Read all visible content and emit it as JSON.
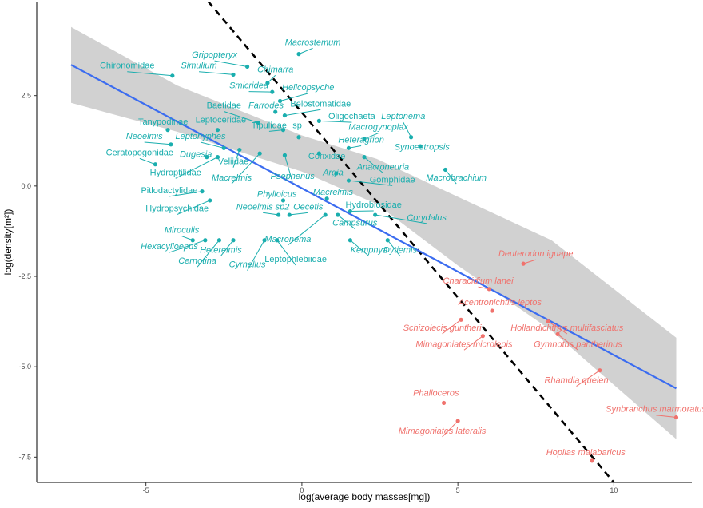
{
  "chart_data": {
    "type": "scatter",
    "title": "",
    "xlabel": "log(average body masses[mg])",
    "ylabel": "log(density[m²])",
    "xlim": [
      -8.5,
      12.5
    ],
    "ylim": [
      -8.2,
      5.1
    ],
    "x_ticks": [
      -5,
      0,
      5,
      10
    ],
    "x_tick_labels": [
      "-5",
      "0",
      "5",
      "10"
    ],
    "y_ticks": [
      2.5,
      0,
      -2.5,
      -5,
      -7.5
    ],
    "y_tick_labels": [
      "2.5",
      "0.0",
      "-2.5",
      "-5.0",
      "-7.5"
    ],
    "grid": false,
    "legend": "none",
    "colors": {
      "invertebrates": "#1aaeae",
      "fish": "#f0726d",
      "regression": "#3b6cf0",
      "confidence_band": "#cccccc",
      "reference_line": "#000000"
    },
    "regression_line": {
      "from": [
        -7.4,
        3.35
      ],
      "to": [
        12.0,
        -5.6
      ]
    },
    "confidence_band": {
      "x": [
        -7.4,
        -4,
        0,
        2.4,
        5,
        8,
        12.0
      ],
      "upper": [
        4.4,
        2.78,
        1.4,
        0.75,
        -0.3,
        -1.5,
        -4.2
      ],
      "lower": [
        2.3,
        1.5,
        0.4,
        -0.5,
        -2.2,
        -4.0,
        -7.0
      ]
    },
    "reference_line": {
      "from": [
        -3.0,
        5.1
      ],
      "to": [
        10.0,
        -8.2
      ]
    },
    "series": [
      {
        "points": [
          {
            "label": "Chironomidae",
            "italic": false,
            "x": -4.15,
            "y": 3.05,
            "tx": -5.6,
            "ty": 3.25,
            "anchor": "middle"
          },
          {
            "label": "Simulium",
            "italic": true,
            "x": -2.2,
            "y": 3.08,
            "tx": -3.3,
            "ty": 3.25,
            "anchor": "middle"
          },
          {
            "label": "Gripopteryx",
            "italic": true,
            "x": -1.75,
            "y": 3.3,
            "tx": -2.8,
            "ty": 3.55,
            "anchor": "middle"
          },
          {
            "label": "Macrostemum",
            "italic": true,
            "x": -0.1,
            "y": 3.65,
            "tx": 0.35,
            "ty": 3.9,
            "anchor": "middle"
          },
          {
            "label": "Chimarra",
            "italic": true,
            "x": -1.1,
            "y": 2.85,
            "tx": -0.85,
            "ty": 3.15,
            "anchor": "middle"
          },
          {
            "label": "Smicridea",
            "italic": true,
            "x": -0.95,
            "y": 2.6,
            "tx": -1.7,
            "ty": 2.7,
            "anchor": "middle"
          },
          {
            "label": "Helicopsyche",
            "italic": true,
            "x": -0.7,
            "y": 2.35,
            "tx": 0.2,
            "ty": 2.65,
            "anchor": "middle"
          },
          {
            "label": "Baetidae",
            "italic": false,
            "x": -1.4,
            "y": 1.75,
            "tx": -2.5,
            "ty": 2.15,
            "anchor": "middle"
          },
          {
            "label": "Farrodes",
            "italic": true,
            "x": -0.85,
            "y": 2.05,
            "tx": -1.15,
            "ty": 2.15,
            "anchor": "middle"
          },
          {
            "label": "Belostomatidae",
            "italic": false,
            "x": -0.55,
            "y": 1.95,
            "tx": 0.6,
            "ty": 2.2,
            "anchor": "middle"
          },
          {
            "label": "Oligochaeta",
            "italic": false,
            "x": 0.55,
            "y": 1.8,
            "tx": 1.6,
            "ty": 1.85,
            "anchor": "middle"
          },
          {
            "label": "Leptonema",
            "italic": true,
            "x": 3.5,
            "y": 1.35,
            "tx": 3.25,
            "ty": 1.85,
            "anchor": "middle"
          },
          {
            "label": "Tanypodinae",
            "italic": false,
            "x": -4.3,
            "y": 1.55,
            "tx": -4.45,
            "ty": 1.7,
            "anchor": "middle"
          },
          {
            "label": "Leptoceridae",
            "italic": false,
            "x": -2.7,
            "y": 1.55,
            "tx": -2.6,
            "ty": 1.75,
            "anchor": "middle"
          },
          {
            "label": "Tipulidae",
            "italic": false,
            "x": -0.6,
            "y": 1.55,
            "tx": -1.05,
            "ty": 1.6,
            "anchor": "middle"
          },
          {
            "label": "sp",
            "italic": false,
            "x": -0.1,
            "y": 1.35,
            "tx": -0.15,
            "ty": 1.6,
            "anchor": "middle"
          },
          {
            "label": "Macrogynoplax",
            "italic": true,
            "x": 2.0,
            "y": 1.3,
            "tx": 2.45,
            "ty": 1.55,
            "anchor": "middle"
          },
          {
            "label": "Neoelmis",
            "italic": true,
            "x": -4.2,
            "y": 1.15,
            "tx": -5.05,
            "ty": 1.3,
            "anchor": "middle"
          },
          {
            "label": "Leptohyphes",
            "italic": true,
            "x": -2.5,
            "y": 1.05,
            "tx": -3.25,
            "ty": 1.3,
            "anchor": "middle"
          },
          {
            "label": "Heteragrion",
            "italic": true,
            "x": 1.5,
            "y": 1.05,
            "tx": 1.9,
            "ty": 1.2,
            "anchor": "middle"
          },
          {
            "label": "Synoestropsis",
            "italic": true,
            "x": 3.8,
            "y": 1.1,
            "tx": 3.85,
            "ty": 1.0,
            "anchor": "middle"
          },
          {
            "label": "Ceratopogonidae",
            "italic": false,
            "x": -4.7,
            "y": 0.6,
            "tx": -5.2,
            "ty": 0.85,
            "anchor": "middle"
          },
          {
            "label": "Dugesia",
            "italic": true,
            "x": -3.05,
            "y": 0.8,
            "tx": -3.4,
            "ty": 0.8,
            "anchor": "middle"
          },
          {
            "label": "Veliidae",
            "italic": false,
            "x": -2.0,
            "y": 1.0,
            "tx": -2.2,
            "ty": 0.6,
            "anchor": "middle"
          },
          {
            "label": "Corixidae",
            "italic": false,
            "x": 0.55,
            "y": 0.9,
            "tx": 0.8,
            "ty": 0.75,
            "anchor": "middle"
          },
          {
            "label": "Hydroptilidae",
            "italic": false,
            "x": -2.7,
            "y": 0.8,
            "tx": -4.05,
            "ty": 0.3,
            "anchor": "middle"
          },
          {
            "label": "Macrelmis",
            "italic": true,
            "x": -1.35,
            "y": 0.9,
            "tx": -2.25,
            "ty": 0.15,
            "anchor": "middle"
          },
          {
            "label": "Psephenus",
            "italic": true,
            "x": -0.55,
            "y": 0.85,
            "tx": -0.3,
            "ty": 0.2,
            "anchor": "middle"
          },
          {
            "label": "Argia",
            "italic": true,
            "x": 1.1,
            "y": 0.35,
            "tx": 1.0,
            "ty": 0.3,
            "anchor": "middle"
          },
          {
            "label": "Anacroneuria",
            "italic": true,
            "x": 2.0,
            "y": 0.8,
            "tx": 2.6,
            "ty": 0.45,
            "anchor": "middle"
          },
          {
            "label": "Macrobrachium",
            "italic": true,
            "x": 4.6,
            "y": 0.45,
            "tx": 4.95,
            "ty": 0.15,
            "anchor": "middle"
          },
          {
            "label": "Gomphidae",
            "italic": false,
            "x": 1.5,
            "y": 0.15,
            "tx": 2.9,
            "ty": 0.1,
            "anchor": "middle"
          },
          {
            "label": "Pitlodactylidae",
            "italic": false,
            "x": -3.2,
            "y": -0.15,
            "tx": -4.25,
            "ty": -0.2,
            "anchor": "middle"
          },
          {
            "label": "Phylloicus",
            "italic": true,
            "x": -0.6,
            "y": -0.4,
            "tx": -0.8,
            "ty": -0.3,
            "anchor": "middle"
          },
          {
            "label": "Macrelmis",
            "italic": true,
            "x": 0.8,
            "y": -0.35,
            "tx": 1.0,
            "ty": -0.25,
            "anchor": "middle"
          },
          {
            "label": "Hydropsychidae",
            "italic": false,
            "x": -2.95,
            "y": -0.4,
            "tx": -4.0,
            "ty": -0.7,
            "anchor": "middle"
          },
          {
            "label": "Neoelmis sp2",
            "italic": true,
            "x": -0.75,
            "y": -0.8,
            "tx": -1.25,
            "ty": -0.65,
            "anchor": "middle"
          },
          {
            "label": "Oecetis",
            "italic": true,
            "x": -0.4,
            "y": -0.8,
            "tx": 0.2,
            "ty": -0.65,
            "anchor": "middle"
          },
          {
            "label": "Hydrobiosidae",
            "italic": false,
            "x": 1.55,
            "y": -0.7,
            "tx": 2.3,
            "ty": -0.6,
            "anchor": "middle"
          },
          {
            "label": "Corydalus",
            "italic": true,
            "x": 2.35,
            "y": -0.8,
            "tx": 4.0,
            "ty": -0.95,
            "anchor": "middle"
          },
          {
            "label": "Campsurus",
            "italic": true,
            "x": 1.15,
            "y": -0.8,
            "tx": 1.7,
            "ty": -1.1,
            "anchor": "middle"
          },
          {
            "label": "Miroculis",
            "italic": true,
            "x": -3.5,
            "y": -1.5,
            "tx": -3.85,
            "ty": -1.3,
            "anchor": "middle"
          },
          {
            "label": "Macronema",
            "italic": true,
            "x": 0.75,
            "y": -0.8,
            "tx": -0.45,
            "ty": -1.55,
            "anchor": "middle"
          },
          {
            "label": "Hexacylloepus",
            "italic": true,
            "x": -3.1,
            "y": -1.5,
            "tx": -4.25,
            "ty": -1.75,
            "anchor": "middle"
          },
          {
            "label": "Heterelmis",
            "italic": true,
            "x": -2.2,
            "y": -1.5,
            "tx": -2.6,
            "ty": -1.85,
            "anchor": "middle"
          },
          {
            "label": "Kempnya",
            "italic": true,
            "x": 1.55,
            "y": -1.5,
            "tx": 2.15,
            "ty": -1.85,
            "anchor": "middle"
          },
          {
            "label": "Dytiemis",
            "italic": true,
            "x": 2.75,
            "y": -1.5,
            "tx": 3.15,
            "ty": -1.85,
            "anchor": "middle"
          },
          {
            "label": "Cernotina",
            "italic": true,
            "x": -2.65,
            "y": -1.5,
            "tx": -3.35,
            "ty": -2.15,
            "anchor": "middle"
          },
          {
            "label": "Cyrnellus",
            "italic": true,
            "x": -1.2,
            "y": -1.5,
            "tx": -1.75,
            "ty": -2.25,
            "anchor": "middle"
          },
          {
            "label": "Leptophlebiidae",
            "italic": false,
            "x": -0.8,
            "y": -1.5,
            "tx": -0.2,
            "ty": -2.1,
            "anchor": "middle"
          }
        ]
      },
      {
        "points": [
          {
            "label": "Deuterodon iguape",
            "italic": true,
            "x": 7.1,
            "y": -2.15,
            "tx": 7.5,
            "ty": -1.95,
            "anchor": "middle"
          },
          {
            "label": "Characidium lanei",
            "italic": true,
            "x": 6.0,
            "y": -2.85,
            "tx": 5.65,
            "ty": -2.7,
            "anchor": "middle"
          },
          {
            "label": "Acentronichtlis leptos",
            "italic": true,
            "x": 6.1,
            "y": -3.45,
            "tx": 6.35,
            "ty": -3.3,
            "anchor": "middle"
          },
          {
            "label": "Schizolecis guntheri",
            "italic": true,
            "x": 5.1,
            "y": -3.7,
            "tx": 4.5,
            "ty": -4.0,
            "anchor": "middle"
          },
          {
            "label": "Hollandichthys multifasciatus",
            "italic": true,
            "x": 7.9,
            "y": -3.75,
            "tx": 8.5,
            "ty": -4.0,
            "anchor": "middle"
          },
          {
            "label": "Mimagoniates microlepis",
            "italic": true,
            "x": 5.8,
            "y": -4.15,
            "tx": 5.2,
            "ty": -4.45,
            "anchor": "middle"
          },
          {
            "label": "Gymnotus pantherinus",
            "italic": true,
            "x": 8.2,
            "y": -4.1,
            "tx": 8.85,
            "ty": -4.45,
            "anchor": "middle"
          },
          {
            "label": "Rhamdia quelen",
            "italic": true,
            "x": 9.55,
            "y": -5.1,
            "tx": 8.8,
            "ty": -5.45,
            "anchor": "middle"
          },
          {
            "label": "Phalloceros",
            "italic": true,
            "x": 4.55,
            "y": -6.0,
            "tx": 4.3,
            "ty": -5.8,
            "anchor": "middle"
          },
          {
            "label": "Synbranchus marmoratus",
            "italic": true,
            "x": 12.0,
            "y": -6.4,
            "tx": 11.35,
            "ty": -6.25,
            "anchor": "middle"
          },
          {
            "label": "Mimagoniates lateralis",
            "italic": true,
            "x": 5.0,
            "y": -6.5,
            "tx": 4.5,
            "ty": -6.85,
            "anchor": "middle"
          },
          {
            "label": "Hoplias malabaricus",
            "italic": true,
            "x": 9.3,
            "y": -7.6,
            "tx": 9.1,
            "ty": -7.45,
            "anchor": "middle"
          }
        ]
      }
    ]
  }
}
